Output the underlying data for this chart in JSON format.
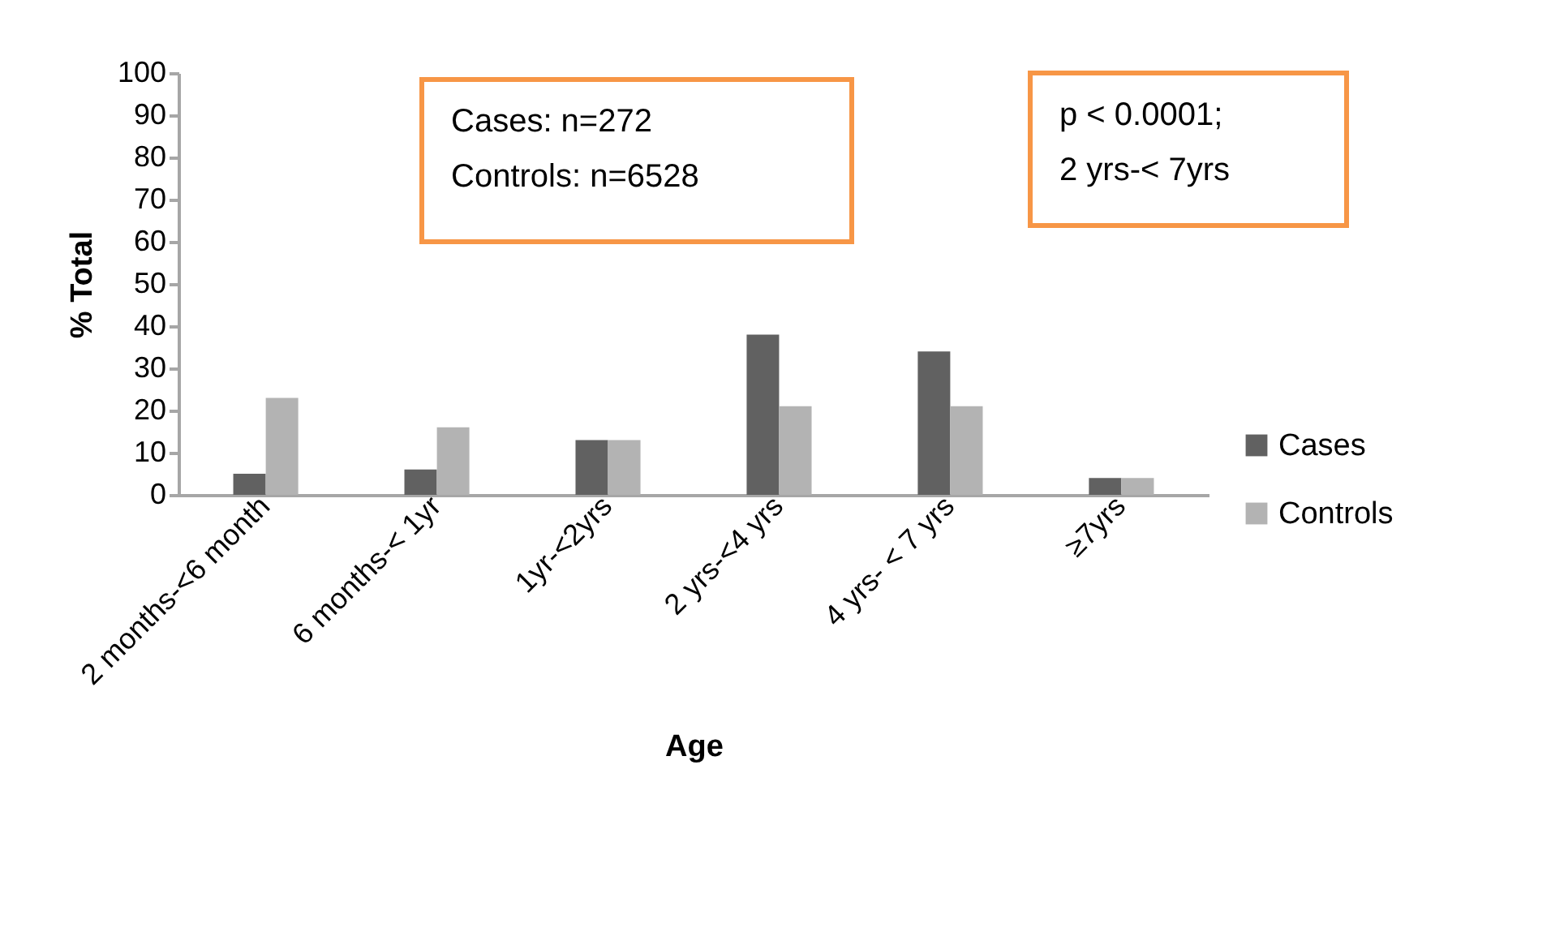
{
  "chart_data": {
    "type": "bar",
    "xlabel": "Age",
    "ylabel": "% Total",
    "categories": [
      "2 months-<6 month",
      "6 months-< 1yr",
      "1yr-<2yrs",
      "2 yrs-<4 yrs",
      "4 yrs- < 7 yrs",
      "≥7yrs"
    ],
    "series": [
      {
        "name": "Cases",
        "color": "#616161",
        "values": [
          5,
          6,
          13,
          38,
          34,
          4
        ]
      },
      {
        "name": "Controls",
        "color": "#b3b3b3",
        "values": [
          23,
          16,
          13,
          21,
          21,
          4
        ]
      }
    ],
    "ylim": [
      0,
      100
    ],
    "yticks": [
      0,
      10,
      20,
      30,
      40,
      50,
      60,
      70,
      80,
      90,
      100
    ],
    "grid": false,
    "legend": "right",
    "annotations": [
      "Cases: n=272\nControls: n=6528",
      "p < 0.0001;\n2 yrs-< 7yrs"
    ]
  }
}
